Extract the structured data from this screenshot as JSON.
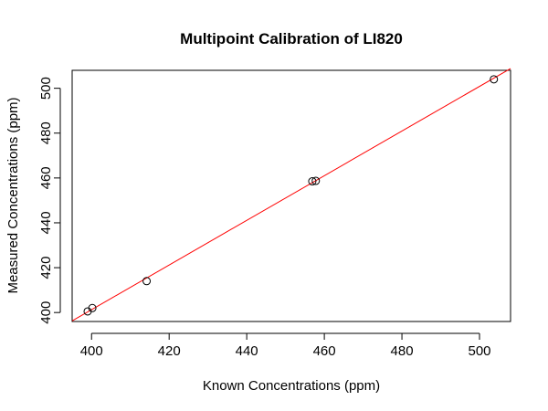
{
  "chart_data": {
    "type": "scatter",
    "title": "Multipoint Calibration of LI820",
    "xlabel": "Known Concentrations (ppm)",
    "ylabel": "Measured Concentrations (ppm)",
    "xlim": [
      395,
      508
    ],
    "ylim": [
      396,
      508
    ],
    "xticks": [
      400,
      420,
      440,
      460,
      480,
      500
    ],
    "yticks": [
      400,
      420,
      440,
      460,
      480,
      500
    ],
    "grid": false,
    "points": [
      {
        "x": 399.0,
        "y": 400.5
      },
      {
        "x": 400.2,
        "y": 402.0
      },
      {
        "x": 414.2,
        "y": 414.0
      },
      {
        "x": 456.9,
        "y": 458.5
      },
      {
        "x": 457.8,
        "y": 458.7
      },
      {
        "x": 503.7,
        "y": 504.0
      }
    ],
    "fit_line": {
      "x": [
        395,
        508
      ],
      "y": [
        396.3,
        508.8
      ],
      "color": "#ff0000"
    },
    "point_color": "#000000"
  }
}
